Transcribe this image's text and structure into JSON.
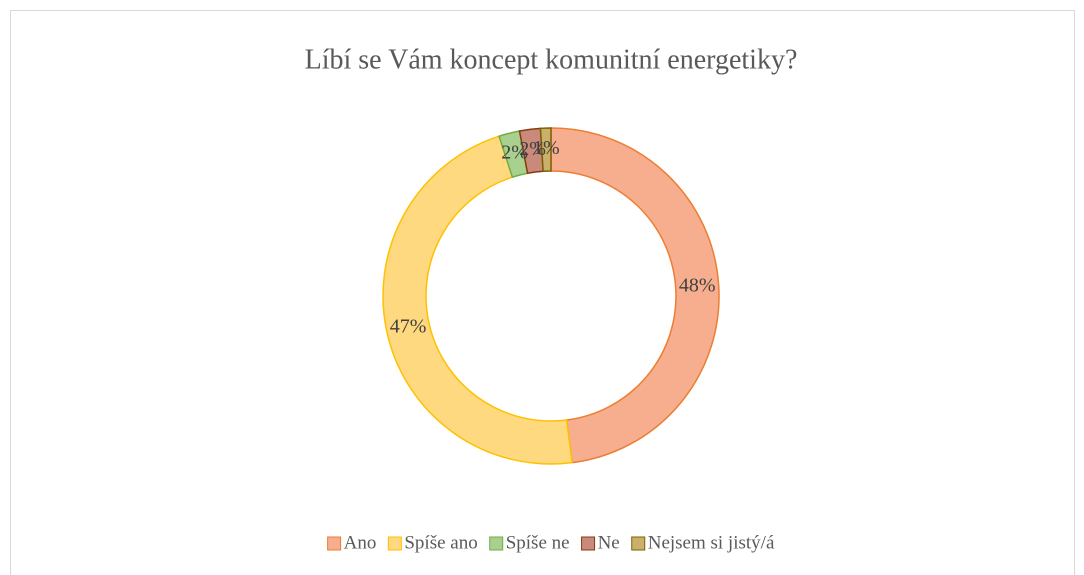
{
  "chart_data": {
    "type": "donut",
    "title": "Líbí se Vám koncept komunitní energetiky?",
    "categories": [
      "Ano",
      "Spíše ano",
      "Spíše ne",
      "Ne",
      "Nejsem si jistý/á"
    ],
    "values": [
      48,
      47,
      2,
      2,
      1
    ],
    "value_labels": [
      "48%",
      "47%",
      "2%",
      "2%",
      "1%"
    ],
    "colors": [
      "#f7ae8f",
      "#ffd97f",
      "#a9d18e",
      "#c98a7c",
      "#c9b06b"
    ],
    "edge_colors": [
      "#ed7d31",
      "#ffc000",
      "#70ad47",
      "#843c0c",
      "#7f6000"
    ],
    "legend": "bottom"
  }
}
